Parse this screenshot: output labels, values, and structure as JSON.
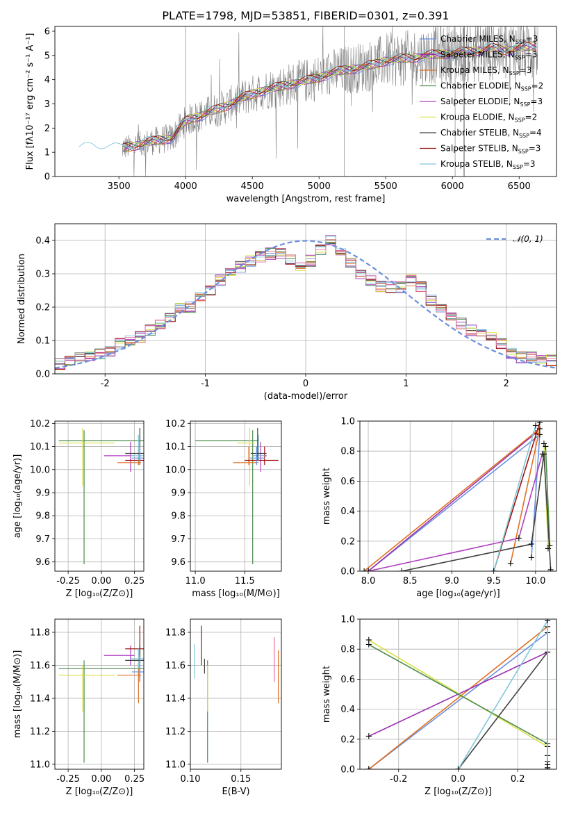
{
  "title": "PLATE=1798, MJD=53851, FIBERID=0301, z=0.391",
  "colors": {
    "Chabrier MILES": "#6a8fdc",
    "Salpeter MILES": "#9b30b0",
    "Kroupa MILES": "#e07020",
    "Chabrier ELODIE": "#4a8a4a",
    "Salpeter ELODIE": "#b040c0",
    "Kroupa ELODIE": "#d8e040",
    "Chabrier STELIB": "#404040",
    "Salpeter STELIB": "#a01010",
    "Kroupa STELIB": "#80c8d8",
    "data": "#808080",
    "hist_extra": "#e870a0"
  },
  "chart_data": [
    {
      "type": "line",
      "title": "PLATE=1798, MJD=53851, FIBERID=0301, z=0.391",
      "xlabel": "wavelength [Angstrom, rest frame]",
      "ylabel": "Flux [f_λ 10^-17 erg cm^-2 s^-1 A^-1]",
      "xlim": [
        3020,
        6780
      ],
      "ylim": [
        0,
        6.2
      ],
      "xticks": [
        3500,
        4000,
        4500,
        5000,
        5500,
        6000,
        6500
      ],
      "yticks": [
        0,
        1,
        2,
        3,
        4,
        5,
        6
      ],
      "legend_position": "top-right",
      "legend": [
        "Chabrier MILES, N_SSP=3",
        "Salpeter MILES, N_SSP=3",
        "Kroupa MILES, N_SSP=3",
        "Chabrier ELODIE, N_SSP=2",
        "Salpeter ELODIE, N_SSP=3",
        "Kroupa ELODIE, N_SSP=2",
        "Chabrier STELIB, N_SSP=4",
        "Salpeter STELIB, N_SSP=3",
        "Kroupa STELIB, N_SSP=3"
      ],
      "model_continuum": {
        "x": [
          3200,
          3300,
          3400,
          3500,
          3600,
          3700,
          3800,
          3900,
          4000,
          4100,
          4200,
          4300,
          4400,
          4500,
          4600,
          4700,
          4800,
          4900,
          5000,
          5100,
          5200,
          5300,
          5400,
          5500,
          5600,
          5700,
          5800,
          5900,
          6000,
          6100,
          6200,
          6300,
          6400,
          6500,
          6600
        ],
        "y": [
          1.1,
          1.25,
          1.2,
          1.15,
          1.25,
          1.4,
          1.5,
          1.6,
          2.3,
          2.5,
          2.7,
          2.9,
          3.2,
          3.4,
          3.6,
          3.7,
          3.85,
          3.95,
          4.1,
          4.3,
          4.4,
          4.5,
          4.6,
          4.8,
          4.85,
          4.9,
          5.0,
          5.05,
          5.1,
          5.15,
          5.2,
          5.3,
          5.2,
          5.3,
          5.4
        ]
      }
    },
    {
      "type": "line",
      "xlabel": "(data-model)/error",
      "ylabel": "Normed distribution",
      "xlim": [
        -2.5,
        2.5
      ],
      "ylim": [
        0,
        0.45
      ],
      "xticks": [
        -2,
        -1,
        0,
        1,
        2
      ],
      "yticks": [
        0.0,
        0.1,
        0.2,
        0.3,
        0.4
      ],
      "legend_position": "top-right",
      "legend": [
        "𝒩(0, 1)"
      ],
      "hist_bins_center": [
        -2.45,
        -2.35,
        -2.25,
        -2.15,
        -2.05,
        -1.95,
        -1.85,
        -1.75,
        -1.65,
        -1.55,
        -1.45,
        -1.35,
        -1.25,
        -1.15,
        -1.05,
        -0.95,
        -0.85,
        -0.75,
        -0.65,
        -0.55,
        -0.45,
        -0.35,
        -0.25,
        -0.15,
        -0.05,
        0.05,
        0.15,
        0.25,
        0.35,
        0.45,
        0.55,
        0.65,
        0.75,
        0.85,
        0.95,
        1.05,
        1.15,
        1.25,
        1.35,
        1.45,
        1.55,
        1.65,
        1.75,
        1.85,
        1.95,
        2.05,
        2.15,
        2.25,
        2.35,
        2.45
      ],
      "hist_values": [
        0.03,
        0.04,
        0.05,
        0.05,
        0.06,
        0.07,
        0.09,
        0.1,
        0.11,
        0.13,
        0.15,
        0.17,
        0.2,
        0.2,
        0.23,
        0.25,
        0.28,
        0.3,
        0.32,
        0.34,
        0.35,
        0.36,
        0.36,
        0.34,
        0.32,
        0.34,
        0.37,
        0.4,
        0.37,
        0.33,
        0.3,
        0.28,
        0.26,
        0.26,
        0.26,
        0.28,
        0.26,
        0.22,
        0.2,
        0.17,
        0.15,
        0.13,
        0.12,
        0.11,
        0.09,
        0.06,
        0.05,
        0.05,
        0.04,
        0.04
      ]
    },
    {
      "type": "scatter",
      "xlabel": "Z [log10(Z/Z⊙)]",
      "ylabel": "age  [log10(age/yr)]",
      "xlim": [
        -0.35,
        0.32
      ],
      "ylim": [
        9.56,
        10.21
      ],
      "xticks": [
        -0.25,
        0.0,
        0.25
      ],
      "yticks": [
        9.6,
        9.7,
        9.8,
        9.9,
        10.0,
        10.1,
        10.2
      ]
    },
    {
      "type": "scatter",
      "xlabel": "mass [log10(M/M⊙)]",
      "ylabel": "",
      "xlim": [
        10.95,
        11.87
      ],
      "ylim": [
        9.56,
        10.21
      ],
      "xticks": [
        11.0,
        11.5
      ],
      "yticks": [
        9.6,
        9.7,
        9.8,
        9.9,
        10.0,
        10.1,
        10.2
      ]
    },
    {
      "type": "line",
      "xlabel": "age  [log10(age/yr)]",
      "ylabel": "mass weight",
      "xlim": [
        7.9,
        10.25
      ],
      "ylim": [
        0,
        1
      ],
      "xticks": [
        8.0,
        8.5,
        9.0,
        9.5,
        10.0
      ],
      "yticks": [
        0.0,
        0.2,
        0.4,
        0.6,
        0.8,
        1.0
      ]
    },
    {
      "type": "scatter",
      "xlabel": "Z [log10(Z/Z⊙)]",
      "ylabel": "mass [log10(M/M⊙)]",
      "xlim": [
        -0.35,
        0.32
      ],
      "ylim": [
        10.97,
        11.88
      ],
      "xticks": [
        -0.25,
        0.0,
        0.25
      ],
      "yticks": [
        11.0,
        11.2,
        11.4,
        11.6,
        11.8
      ]
    },
    {
      "type": "scatter",
      "xlabel": "E(B-V)",
      "ylabel": "",
      "xlim": [
        0.1,
        0.19
      ],
      "ylim": [
        10.97,
        11.88
      ],
      "xticks": [
        0.1,
        0.15
      ],
      "yticks": [
        11.0,
        11.2,
        11.4,
        11.6,
        11.8
      ]
    },
    {
      "type": "line",
      "xlabel": "Z [log10(Z/Z⊙)]",
      "ylabel": "mass weight",
      "xlim": [
        -0.33,
        0.33
      ],
      "ylim": [
        0,
        1
      ],
      "xticks": [
        -0.2,
        0.0,
        0.2
      ],
      "yticks": [
        0.0,
        0.2,
        0.4,
        0.6,
        0.8,
        1.0
      ]
    }
  ],
  "labels": {
    "p1_xlabel": "wavelength [Angstrom, rest frame]",
    "p2_xlabel": "(data-model)/error",
    "p2_ylabel": "Normed distribution",
    "p3_xlabel": "Z [log₁₀(Z/Z⊙)]",
    "p3_ylabel": "age  [log₁₀(age/yr)]",
    "p4_xlabel": "mass [log₁₀(M/M⊙)]",
    "p5_xlabel": "age  [log₁₀(age/yr)]",
    "p5_ylabel": "mass weight",
    "p6_xlabel": "Z [log₁₀(Z/Z⊙)]",
    "p6_ylabel": "mass [log₁₀(M/M⊙)]",
    "p7_xlabel": "E(B-V)",
    "p8_xlabel": "Z [log₁₀(Z/Z⊙)]",
    "p8_ylabel": "mass weight"
  }
}
